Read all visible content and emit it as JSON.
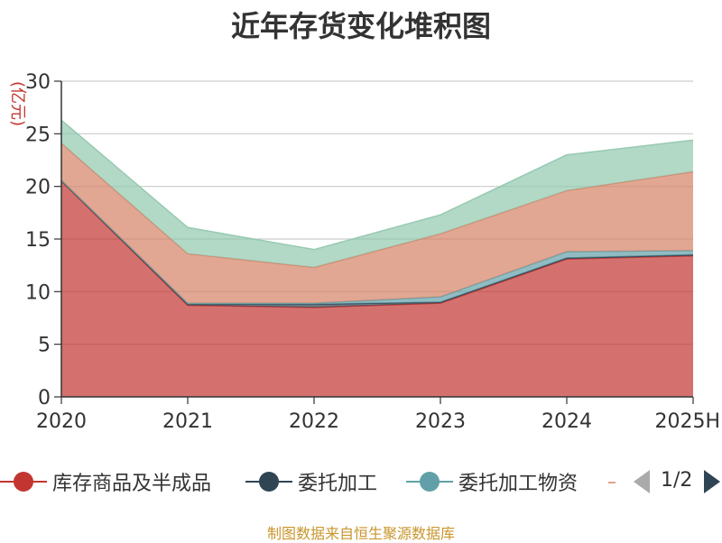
{
  "title": "近年存货变化堆积图",
  "source_note": "制图数据来自恒生聚源数据库",
  "legend": {
    "items": [
      {
        "label": "库存商品及半成品",
        "color": "#c23531"
      },
      {
        "label": "委托加工",
        "color": "#2f4554"
      },
      {
        "label": "委托加工物资",
        "color": "#61a0a8"
      }
    ],
    "pager": "1/2"
  },
  "chart_data": {
    "type": "area",
    "stacked": true,
    "title": "近年存货变化堆积图",
    "ylabel": "(亿元)",
    "xlabel": "",
    "categories": [
      "2020",
      "2021",
      "2022",
      "2023",
      "2024",
      "2025H"
    ],
    "ylim": [
      0,
      30
    ],
    "yticks": [
      0,
      5,
      10,
      15,
      20,
      25,
      30
    ],
    "grid": true,
    "legend_position": "bottom",
    "series": [
      {
        "name": "库存商品及半成品",
        "color": "#c23531",
        "values": [
          20.5,
          8.7,
          8.5,
          8.9,
          13.1,
          13.4
        ]
      },
      {
        "name": "委托加工",
        "color": "#2f4554",
        "values": [
          0.05,
          0.1,
          0.3,
          0.1,
          0.1,
          0.1
        ]
      },
      {
        "name": "委托加工物资",
        "color": "#61a0a8",
        "values": [
          0.05,
          0.1,
          0.1,
          0.5,
          0.6,
          0.4
        ]
      },
      {
        "color": "#d48265",
        "values": [
          3.5,
          4.7,
          3.4,
          6.0,
          5.8,
          7.5
        ]
      },
      {
        "color": "#91c7ae",
        "values": [
          2.2,
          2.5,
          1.7,
          1.8,
          3.4,
          3.0
        ]
      }
    ]
  }
}
